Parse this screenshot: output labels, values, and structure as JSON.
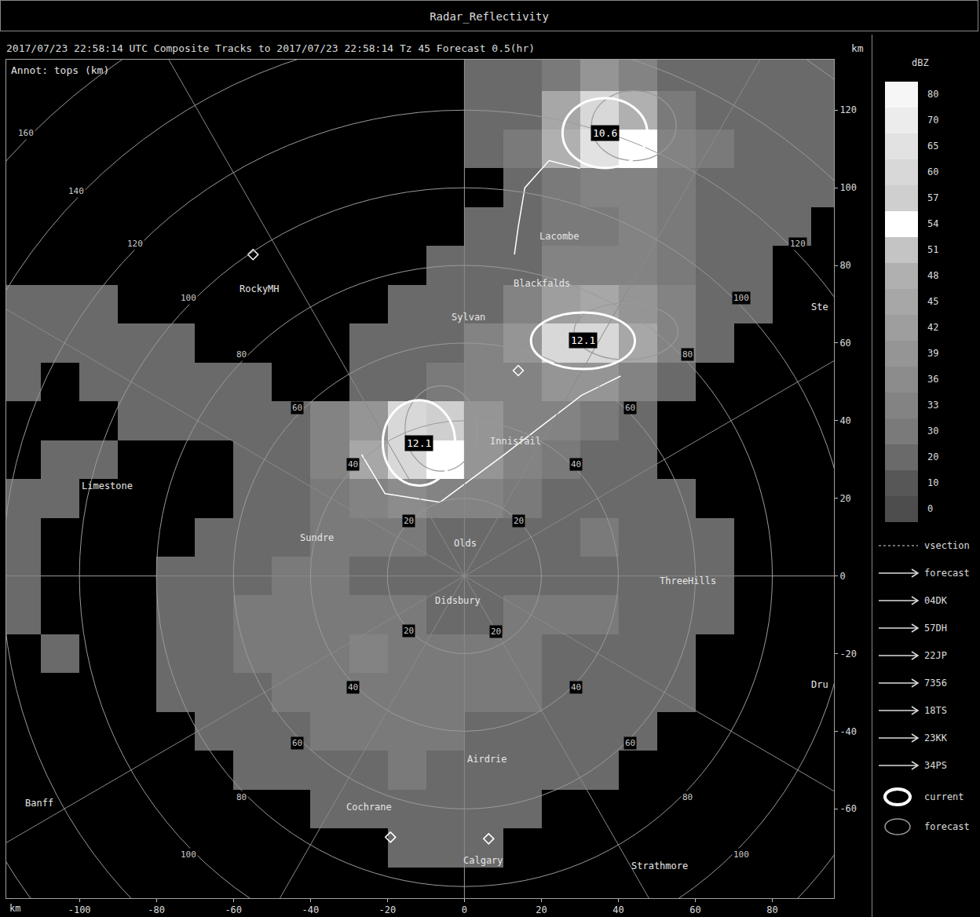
{
  "header": {
    "title": "Radar_Reflectivity",
    "subtitle": "2017/07/23 22:58:14 UTC Composite Tracks to 2017/07/23 22:58:14 Tz 45 Forecast 0.5(hr)"
  },
  "chart_data": {
    "type": "heatmap",
    "unit_label": "km",
    "annotation": "Annot: tops (km)",
    "grid": false,
    "xlim": [
      -119,
      96
    ],
    "ylim": [
      -83,
      133
    ],
    "xticks": [
      -100,
      -80,
      -60,
      -40,
      -20,
      0,
      20,
      40,
      60,
      80
    ],
    "yticks": [
      -60,
      -40,
      -20,
      0,
      20,
      40,
      60,
      80,
      100,
      120
    ],
    "x": [
      -115,
      -105,
      -95,
      -85,
      -75,
      -65,
      -55,
      -45,
      -35,
      -25,
      -15,
      -5,
      5,
      15,
      25,
      35,
      45,
      55,
      65,
      75,
      85,
      95
    ],
    "y": [
      130,
      120,
      110,
      100,
      90,
      80,
      70,
      60,
      50,
      40,
      30,
      20,
      10,
      0,
      -10,
      -20,
      -30,
      -40,
      -50,
      -60,
      -70,
      -80
    ],
    "z": [
      [
        null,
        null,
        null,
        null,
        null,
        null,
        null,
        null,
        null,
        null,
        null,
        null,
        25,
        28,
        30,
        40,
        35,
        28,
        25,
        25,
        22,
        20
      ],
      [
        null,
        null,
        null,
        null,
        null,
        null,
        null,
        null,
        null,
        null,
        null,
        null,
        22,
        28,
        45,
        62,
        50,
        30,
        28,
        25,
        25,
        22
      ],
      [
        null,
        null,
        null,
        null,
        null,
        null,
        null,
        null,
        null,
        null,
        null,
        null,
        25,
        30,
        50,
        65,
        55,
        35,
        30,
        28,
        25,
        22
      ],
      [
        null,
        null,
        null,
        null,
        null,
        null,
        null,
        null,
        null,
        null,
        null,
        null,
        null,
        25,
        30,
        35,
        35,
        30,
        28,
        28,
        25,
        20
      ],
      [
        null,
        null,
        null,
        null,
        null,
        null,
        null,
        null,
        null,
        null,
        null,
        null,
        22,
        28,
        30,
        30,
        33,
        30,
        28,
        25,
        22,
        null
      ],
      [
        null,
        null,
        null,
        null,
        null,
        null,
        null,
        null,
        null,
        null,
        null,
        20,
        25,
        28,
        33,
        35,
        35,
        30,
        28,
        25,
        null,
        null
      ],
      [
        25,
        25,
        22,
        null,
        null,
        null,
        null,
        null,
        null,
        null,
        22,
        25,
        28,
        35,
        42,
        45,
        40,
        33,
        28,
        22,
        null,
        null
      ],
      [
        25,
        28,
        25,
        25,
        22,
        null,
        null,
        null,
        null,
        22,
        25,
        28,
        33,
        40,
        62,
        62,
        45,
        33,
        25,
        null,
        null,
        null
      ],
      [
        22,
        null,
        25,
        28,
        25,
        25,
        22,
        null,
        null,
        25,
        28,
        30,
        33,
        35,
        40,
        40,
        33,
        28,
        null,
        null,
        null,
        null
      ],
      [
        null,
        null,
        null,
        22,
        25,
        25,
        28,
        28,
        33,
        40,
        60,
        58,
        40,
        35,
        33,
        30,
        25,
        null,
        null,
        null,
        null,
        null
      ],
      [
        null,
        20,
        22,
        null,
        null,
        null,
        25,
        28,
        33,
        45,
        62,
        55,
        40,
        35,
        30,
        28,
        25,
        null,
        null,
        null,
        null,
        null
      ],
      [
        25,
        22,
        null,
        null,
        null,
        null,
        25,
        28,
        30,
        35,
        38,
        35,
        33,
        30,
        28,
        28,
        25,
        22,
        null,
        null,
        null,
        null
      ],
      [
        22,
        null,
        null,
        null,
        null,
        25,
        28,
        28,
        30,
        30,
        30,
        28,
        28,
        28,
        28,
        30,
        28,
        25,
        22,
        null,
        null,
        null
      ],
      [
        25,
        null,
        null,
        null,
        25,
        28,
        28,
        30,
        30,
        28,
        28,
        20,
        20,
        28,
        28,
        28,
        28,
        28,
        25,
        null,
        null,
        null
      ],
      [
        22,
        null,
        null,
        null,
        25,
        28,
        30,
        30,
        30,
        30,
        30,
        25,
        25,
        30,
        30,
        30,
        28,
        25,
        22,
        null,
        null,
        null
      ],
      [
        null,
        22,
        null,
        null,
        22,
        28,
        30,
        30,
        30,
        33,
        30,
        30,
        30,
        30,
        28,
        28,
        28,
        25,
        null,
        null,
        null,
        null
      ],
      [
        null,
        null,
        null,
        null,
        20,
        25,
        28,
        30,
        30,
        30,
        30,
        30,
        30,
        30,
        28,
        28,
        25,
        22,
        null,
        null,
        null,
        null
      ],
      [
        null,
        null,
        null,
        null,
        null,
        22,
        25,
        28,
        30,
        30,
        30,
        30,
        28,
        28,
        28,
        25,
        22,
        null,
        null,
        null,
        null,
        null
      ],
      [
        null,
        null,
        null,
        null,
        null,
        null,
        22,
        25,
        28,
        28,
        30,
        28,
        28,
        28,
        25,
        22,
        null,
        null,
        null,
        null,
        null,
        null
      ],
      [
        null,
        null,
        null,
        null,
        null,
        null,
        null,
        null,
        22,
        25,
        25,
        25,
        25,
        22,
        null,
        null,
        null,
        null,
        null,
        null,
        null,
        null
      ],
      [
        null,
        null,
        null,
        null,
        null,
        null,
        null,
        null,
        null,
        null,
        20,
        22,
        22,
        null,
        null,
        null,
        null,
        null,
        null,
        null,
        null,
        null
      ],
      [
        null,
        null,
        null,
        null,
        null,
        null,
        null,
        null,
        null,
        null,
        null,
        null,
        null,
        null,
        null,
        null,
        null,
        null,
        null,
        null,
        null,
        null
      ]
    ],
    "colorbar": {
      "title": "dBZ",
      "levels": [
        0,
        10,
        20,
        30,
        33,
        36,
        39,
        42,
        45,
        48,
        51,
        54,
        57,
        60,
        65,
        70,
        80
      ],
      "colors": [
        "#4d4d4d",
        "#575757",
        "#6a6a6a",
        "#7a7a7a",
        "#838383",
        "#8c8c8c",
        "#959595",
        "#9e9e9e",
        "#a7a7a7",
        "#b0b0b0",
        "#c4c4c4",
        "#ffffff",
        "#cfcfcf",
        "#d8d8d8",
        "#e2e2e2",
        "#ececec",
        "#f6f6f6"
      ]
    },
    "range_rings": {
      "radii": [
        20,
        40,
        60,
        80,
        100,
        120,
        140,
        160
      ],
      "labels": [
        {
          "value": 20,
          "x": -14.5,
          "y": 14.1
        },
        {
          "value": 20,
          "x": 14.1,
          "y": 14.1
        },
        {
          "value": 20,
          "x": -14.5,
          "y": -14.1
        },
        {
          "value": 20,
          "x": 8.2,
          "y": -14.3
        },
        {
          "value": 40,
          "x": -29,
          "y": 28.7
        },
        {
          "value": 40,
          "x": 29,
          "y": 28.7
        },
        {
          "value": 40,
          "x": -29,
          "y": -28.7
        },
        {
          "value": 40,
          "x": 29,
          "y": -28.7
        },
        {
          "value": 60,
          "x": -43.5,
          "y": 43.4
        },
        {
          "value": 60,
          "x": 43,
          "y": 43.4
        },
        {
          "value": 60,
          "x": -43.5,
          "y": -43
        },
        {
          "value": 60,
          "x": 43,
          "y": -43
        },
        {
          "value": 80,
          "x": -58,
          "y": 57
        },
        {
          "value": 80,
          "x": 58,
          "y": 57
        },
        {
          "value": 80,
          "x": -58,
          "y": -57
        },
        {
          "value": 80,
          "x": 58,
          "y": -57
        },
        {
          "value": 100,
          "x": -71.6,
          "y": 71.7
        },
        {
          "value": 100,
          "x": 72,
          "y": 71.7
        },
        {
          "value": 100,
          "x": -71.6,
          "y": -71.7
        },
        {
          "value": 100,
          "x": 72,
          "y": -71.7
        },
        {
          "value": 120,
          "x": -85.5,
          "y": 85.5
        },
        {
          "value": 120,
          "x": 86.7,
          "y": 85.5
        },
        {
          "value": 140,
          "x": -100.8,
          "y": 99.2
        },
        {
          "value": 160,
          "x": -114,
          "y": 114
        }
      ]
    },
    "places": [
      {
        "name": "RockyMH",
        "x": -53.3,
        "y": 73.9
      },
      {
        "name": "Lacombe",
        "x": 24.7,
        "y": 87.5
      },
      {
        "name": "Blackfalds",
        "x": 20.2,
        "y": 75.4
      },
      {
        "name": "Sylvan",
        "x": 1,
        "y": 66.7
      },
      {
        "name": "Innisfail",
        "x": 13.3,
        "y": 34.7
      },
      {
        "name": "Limestone",
        "x": -92.7,
        "y": 23.2
      },
      {
        "name": "Sundre",
        "x": -38.4,
        "y": 9.9
      },
      {
        "name": "Olds",
        "x": 0.2,
        "y": 8.5
      },
      {
        "name": "Didsbury",
        "x": -1.8,
        "y": -6.3
      },
      {
        "name": "ThreeHills",
        "x": 58,
        "y": -1.2
      },
      {
        "name": "Airdrie",
        "x": 5.9,
        "y": -47.3
      },
      {
        "name": "Cochrane",
        "x": -24.7,
        "y": -59.6
      },
      {
        "name": "Banff",
        "x": -110.4,
        "y": -58.6
      },
      {
        "name": "Calgary",
        "x": 4.9,
        "y": -73.3
      },
      {
        "name": "Strathmore",
        "x": 50.8,
        "y": -74.7
      },
      {
        "name": "Ste",
        "x": 95,
        "y": 69.3
      },
      {
        "name": "Dru",
        "x": 95,
        "y": -27.9
      }
    ],
    "sites": {
      "x": [
        -54.9,
        14,
        -19.2,
        6.3
      ],
      "y": [
        82.8,
        52.9,
        -67.3,
        -67.7
      ],
      "marker": "diamond-open"
    },
    "cells": [
      {
        "top": 10.6,
        "x": 36.5,
        "y": 114.1,
        "rx": 11,
        "ry": 9,
        "forecast_x": 44,
        "forecast_y": 116,
        "track_x": [
          13,
          14,
          15.7,
          22,
          30
        ],
        "track_y": [
          82.8,
          90,
          100,
          107,
          105
        ]
      },
      {
        "top": 12.1,
        "x": 30.8,
        "y": 60.6,
        "rx": 13.5,
        "ry": 7.3,
        "forecast_x": 42,
        "forecast_y": 63,
        "track_x": [
          -6.3,
          10,
          30.4,
          40.6
        ],
        "track_y": [
          19,
          31,
          46.5,
          51.5
        ]
      },
      {
        "top": 12.1,
        "x": -11.8,
        "y": 34.3,
        "rx": 9.4,
        "ry": 11,
        "forecast_x": -6,
        "forecast_y": 38,
        "track_x": [
          -26.7,
          -20.6,
          -6.3
        ],
        "track_y": [
          31.3,
          21.2,
          19
        ]
      }
    ],
    "track_legend": [
      {
        "label": "vsection",
        "line_style": "dotted"
      },
      {
        "label": "forecast",
        "line_style": "arrow"
      },
      {
        "label": "04DK",
        "line_style": "arrow"
      },
      {
        "label": "57DH",
        "line_style": "arrow"
      },
      {
        "label": "22JP",
        "line_style": "arrow"
      },
      {
        "label": "7356",
        "line_style": "arrow"
      },
      {
        "label": "18TS",
        "line_style": "arrow"
      },
      {
        "label": "23KK",
        "line_style": "arrow"
      },
      {
        "label": "34PS",
        "line_style": "arrow"
      }
    ],
    "cell_legend": [
      {
        "label": "current",
        "color": "#ffffff"
      },
      {
        "label": "forecast",
        "color": "#9a9a9a"
      }
    ]
  }
}
